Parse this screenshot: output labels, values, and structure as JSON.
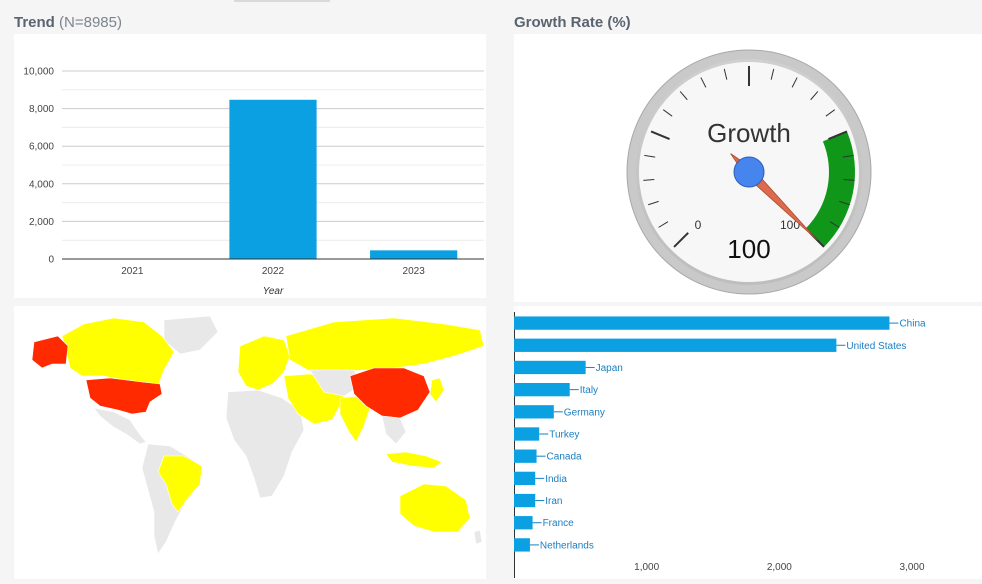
{
  "trend": {
    "title": "Trend",
    "subtitle": "(N=8985)",
    "chart_data": {
      "type": "bar",
      "categories": [
        "2021",
        "2022",
        "2023"
      ],
      "values": [
        0,
        8470,
        460
      ],
      "xlabel": "Year",
      "ylim": [
        0,
        10000
      ],
      "yticks": [
        0,
        2000,
        4000,
        6000,
        8000,
        10000
      ],
      "ytick_labels": [
        "0",
        "2,000",
        "4,000",
        "6,000",
        "8,000",
        "10,000"
      ],
      "color": "#0aa0e2"
    }
  },
  "growth": {
    "title": "Growth Rate (%)",
    "gauge_label": "Growth",
    "value": 100,
    "value_text": "100",
    "min_label": "0",
    "max_label": "100",
    "range_min": 0,
    "range_max": 100,
    "green_from": 75,
    "green_to": 100,
    "green_color": "#109618",
    "needle_color": "#dc6b4d",
    "hub_color": "#4684ee"
  },
  "map": {
    "colors": {
      "high": "#ff2a00",
      "mid": "#ffff00",
      "none": "#e8e8e8"
    },
    "red_regions": [
      "United States",
      "Alaska",
      "China"
    ],
    "yellow_regions": [
      "Canada",
      "Brazil",
      "Australia",
      "Russia",
      "India",
      "Japan",
      "Europe",
      "Iran",
      "Saudi Arabia",
      "Indonesia",
      "Turkey"
    ]
  },
  "countries": {
    "chart_data": {
      "type": "bar",
      "orientation": "horizontal",
      "categories": [
        "China",
        "United States",
        "Japan",
        "Italy",
        "Germany",
        "Turkey",
        "Canada",
        "India",
        "Iran",
        "France",
        "Netherlands"
      ],
      "values": [
        2830,
        2430,
        540,
        420,
        300,
        190,
        170,
        160,
        160,
        140,
        120
      ],
      "xlim": [
        0,
        3000
      ],
      "xticks": [
        1000,
        2000,
        3000
      ],
      "xtick_labels": [
        "1,000",
        "2,000",
        "3,000"
      ],
      "color": "#0aa0e2",
      "label_color": "#1a7fc1"
    }
  }
}
